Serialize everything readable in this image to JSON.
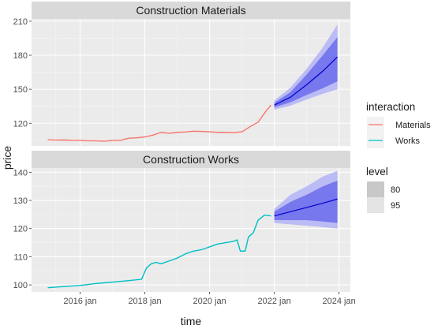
{
  "chart_data": {
    "type": "line",
    "xlabel": "time",
    "ylabel": "price",
    "x_ticks": [
      "2016 jan",
      "2018 jan",
      "2020 jan",
      "2022 jan",
      "2024 jan"
    ],
    "x_tick_values": [
      2016,
      2018,
      2020,
      2022,
      2024
    ],
    "xlim": [
      2014.5,
      2024.35
    ],
    "grid": true,
    "legend_placement": "right",
    "legend": {
      "series_title": "interaction",
      "series": [
        {
          "name": "Materials",
          "color": "#F8766D"
        },
        {
          "name": "Works",
          "color": "#00BFC4"
        }
      ],
      "level_title": "level",
      "levels": [
        {
          "name": "80",
          "color": "#c8c8c8"
        },
        {
          "name": "95",
          "color": "#e4e4e4"
        }
      ]
    },
    "forecast_colors": {
      "line": "#0000cc",
      "band80": "#7777ee",
      "band95": "#bbbbf5"
    },
    "panels": [
      {
        "title": "Construction Materials",
        "ylim": [
          100,
          212
        ],
        "y_ticks": [
          120,
          150,
          180,
          210
        ],
        "series_name": "Materials",
        "history": [
          [
            2015.0,
            105.5
          ],
          [
            2015.25,
            105.2
          ],
          [
            2015.5,
            105.3
          ],
          [
            2015.75,
            104.9
          ],
          [
            2016.0,
            104.8
          ],
          [
            2016.25,
            104.6
          ],
          [
            2016.5,
            104.5
          ],
          [
            2016.75,
            104.2
          ],
          [
            2017.0,
            104.8
          ],
          [
            2017.25,
            105.0
          ],
          [
            2017.5,
            106.8
          ],
          [
            2017.75,
            107.2
          ],
          [
            2018.0,
            108.0
          ],
          [
            2018.25,
            109.5
          ],
          [
            2018.5,
            112.0
          ],
          [
            2018.75,
            111.2
          ],
          [
            2019.0,
            112.0
          ],
          [
            2019.25,
            112.3
          ],
          [
            2019.5,
            113.0
          ],
          [
            2019.75,
            112.8
          ],
          [
            2020.0,
            112.5
          ],
          [
            2020.25,
            112.0
          ],
          [
            2020.5,
            112.0
          ],
          [
            2020.75,
            111.8
          ],
          [
            2021.0,
            112.5
          ],
          [
            2021.25,
            117.0
          ],
          [
            2021.5,
            121.0
          ],
          [
            2021.75,
            131.0
          ],
          [
            2021.9,
            136.0
          ]
        ],
        "forecast": [
          {
            "x": 2022.0,
            "mean": 136.0,
            "lo80": 134.0,
            "hi80": 138.0,
            "lo95": 132.0,
            "hi95": 140.0
          },
          {
            "x": 2022.5,
            "mean": 143.0,
            "lo80": 138.5,
            "hi80": 147.5,
            "lo95": 135.5,
            "hi95": 151.5
          },
          {
            "x": 2023.0,
            "mean": 154.0,
            "lo80": 145.0,
            "hi80": 163.0,
            "lo95": 141.0,
            "hi95": 168.0
          },
          {
            "x": 2023.5,
            "mean": 166.0,
            "lo80": 151.0,
            "hi80": 180.0,
            "lo95": 146.0,
            "hi95": 187.0
          },
          {
            "x": 2023.95,
            "mean": 178.5,
            "lo80": 157.0,
            "hi80": 196.0,
            "lo95": 150.0,
            "hi95": 207.0
          }
        ]
      },
      {
        "title": "Construction Works",
        "ylim": [
          97.5,
          141.5
        ],
        "y_ticks": [
          100,
          110,
          120,
          130,
          140
        ],
        "series_name": "Works",
        "history": [
          [
            2015.0,
            99.0
          ],
          [
            2015.5,
            99.4
          ],
          [
            2016.0,
            99.8
          ],
          [
            2016.5,
            100.5
          ],
          [
            2017.0,
            101.0
          ],
          [
            2017.5,
            101.5
          ],
          [
            2017.9,
            102.0
          ],
          [
            2018.05,
            106.0
          ],
          [
            2018.2,
            107.5
          ],
          [
            2018.35,
            108.0
          ],
          [
            2018.5,
            107.5
          ],
          [
            2018.75,
            108.5
          ],
          [
            2019.0,
            109.5
          ],
          [
            2019.25,
            111.0
          ],
          [
            2019.5,
            112.0
          ],
          [
            2019.75,
            112.5
          ],
          [
            2020.0,
            113.5
          ],
          [
            2020.25,
            114.5
          ],
          [
            2020.5,
            115.0
          ],
          [
            2020.75,
            115.5
          ],
          [
            2020.85,
            116.0
          ],
          [
            2020.95,
            112.0
          ],
          [
            2021.1,
            112.0
          ],
          [
            2021.2,
            117.0
          ],
          [
            2021.35,
            118.5
          ],
          [
            2021.5,
            123.0
          ],
          [
            2021.7,
            124.8
          ],
          [
            2021.9,
            124.5
          ]
        ],
        "forecast": [
          {
            "x": 2022.0,
            "mean": 124.5,
            "lo80": 123.0,
            "hi80": 126.0,
            "lo95": 122.0,
            "hi95": 127.0
          },
          {
            "x": 2022.5,
            "mean": 126.0,
            "lo80": 123.0,
            "hi80": 129.5,
            "lo95": 121.5,
            "hi95": 132.0
          },
          {
            "x": 2023.0,
            "mean": 127.5,
            "lo80": 123.0,
            "hi80": 132.0,
            "lo95": 121.0,
            "hi95": 135.0
          },
          {
            "x": 2023.5,
            "mean": 129.0,
            "lo80": 122.5,
            "hi80": 135.0,
            "lo95": 120.5,
            "hi95": 138.5
          },
          {
            "x": 2023.95,
            "mean": 130.5,
            "lo80": 122.0,
            "hi80": 137.0,
            "lo95": 120.0,
            "hi95": 140.5
          }
        ]
      }
    ]
  }
}
